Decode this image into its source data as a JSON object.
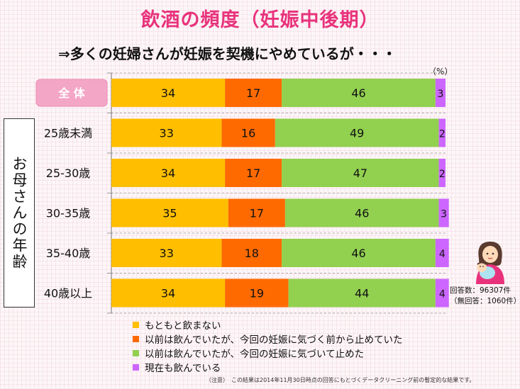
{
  "title": "飲酒の頻度（妊娠中後期）",
  "subtitle": "⇒多くの妊婦さんが妊娠を契機にやめているが・・・",
  "unit_label": "（%）",
  "y_axis_title": "お母さんの年齢",
  "response_count": "回答数：96307件",
  "invalid_count": "（無回答：1060件）",
  "note": "（注意）　この結果は2014年11月30日時点の回答にもとづくデータクリーニング前の暫定的な結果です。",
  "colors": {
    "never": "#ffbe00",
    "quit_before": "#ff6a00",
    "quit_after": "#92d050",
    "still": "#cc66ff",
    "title_pink": "#e8337c"
  },
  "chart_data": {
    "type": "bar",
    "orientation": "horizontal",
    "stacked": true,
    "title": "飲酒の頻度（妊娠中後期）",
    "xlabel": "",
    "ylabel": "お母さんの年齢",
    "unit": "%",
    "categories": [
      "全 体",
      "25歳未満",
      "25-30歳",
      "30-35歳",
      "35-40歳",
      "40歳以上"
    ],
    "series": [
      {
        "name": "もともと飲まない",
        "color": "#ffbe00",
        "values": [
          34,
          33,
          34,
          35,
          33,
          34
        ]
      },
      {
        "name": "以前は飲んでいたが、今回の妊娠に気づく前から止めていた",
        "color": "#ff6a00",
        "values": [
          17,
          16,
          17,
          17,
          18,
          19
        ]
      },
      {
        "name": "以前は飲んでいたが、今回の妊娠に気づいて止めた",
        "color": "#92d050",
        "values": [
          46,
          49,
          47,
          46,
          46,
          44
        ]
      },
      {
        "name": "現在も飲んでいる",
        "color": "#cc66ff",
        "values": [
          3,
          2,
          2,
          3,
          4,
          4
        ]
      }
    ],
    "xlim": [
      0,
      100
    ],
    "legend_position": "bottom-left"
  }
}
